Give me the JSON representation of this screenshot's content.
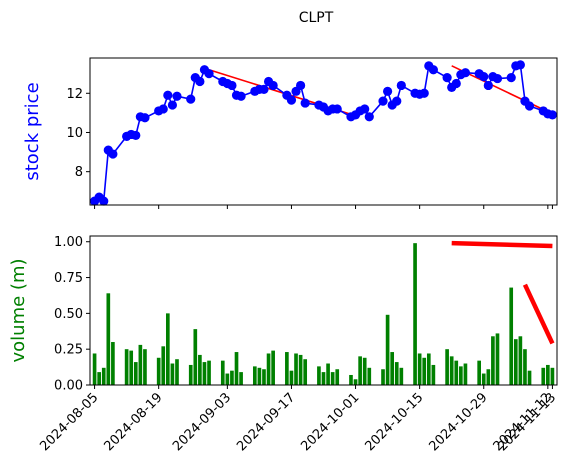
{
  "title": "CLPT",
  "colors": {
    "price": "#0000ff",
    "volume": "#008000",
    "trend": "#ff0000"
  },
  "chart_data": [
    {
      "type": "line",
      "ylabel": "stock price",
      "ylim": [
        6.3,
        13.8
      ],
      "yticks": [
        8,
        10,
        12
      ],
      "xlim": [
        "2024-08-04",
        "2024-11-14"
      ],
      "x_tick_dates": [
        "2024-08-05",
        "2024-08-19",
        "2024-09-03",
        "2024-09-17",
        "2024-10-01",
        "2024-10-15",
        "2024-10-29",
        "2024-11-12",
        "2024-11-13"
      ],
      "series": [
        {
          "marker": "circle",
          "x": [
            "2024-08-05",
            "2024-08-06",
            "2024-08-07",
            "2024-08-08",
            "2024-08-09",
            "2024-08-12",
            "2024-08-13",
            "2024-08-14",
            "2024-08-15",
            "2024-08-16",
            "2024-08-19",
            "2024-08-20",
            "2024-08-21",
            "2024-08-22",
            "2024-08-23",
            "2024-08-26",
            "2024-08-27",
            "2024-08-28",
            "2024-08-29",
            "2024-08-30",
            "2024-09-02",
            "2024-09-03",
            "2024-09-04",
            "2024-09-05",
            "2024-09-06",
            "2024-09-09",
            "2024-09-10",
            "2024-09-11",
            "2024-09-12",
            "2024-09-13",
            "2024-09-16",
            "2024-09-17",
            "2024-09-18",
            "2024-09-19",
            "2024-09-20",
            "2024-09-23",
            "2024-09-24",
            "2024-09-25",
            "2024-09-26",
            "2024-09-27",
            "2024-09-30",
            "2024-10-01",
            "2024-10-02",
            "2024-10-03",
            "2024-10-04",
            "2024-10-07",
            "2024-10-08",
            "2024-10-09",
            "2024-10-10",
            "2024-10-11",
            "2024-10-14",
            "2024-10-15",
            "2024-10-16",
            "2024-10-17",
            "2024-10-18",
            "2024-10-21",
            "2024-10-22",
            "2024-10-23",
            "2024-10-24",
            "2024-10-25",
            "2024-10-28",
            "2024-10-29",
            "2024-10-30",
            "2024-10-31",
            "2024-11-01",
            "2024-11-04",
            "2024-11-05",
            "2024-11-06",
            "2024-11-07",
            "2024-11-08",
            "2024-11-11",
            "2024-11-12",
            "2024-11-13"
          ],
          "values": [
            6.5,
            6.7,
            6.5,
            9.1,
            8.9,
            9.8,
            9.9,
            9.85,
            10.8,
            10.75,
            11.1,
            11.2,
            11.9,
            11.4,
            11.85,
            11.7,
            12.8,
            12.6,
            13.2,
            13.0,
            12.6,
            12.5,
            12.4,
            11.9,
            11.85,
            12.1,
            12.2,
            12.2,
            12.6,
            12.4,
            11.9,
            11.65,
            12.1,
            12.4,
            11.5,
            11.4,
            11.3,
            11.1,
            11.2,
            11.2,
            10.8,
            10.9,
            11.1,
            11.2,
            10.8,
            11.6,
            12.1,
            11.4,
            11.6,
            12.4,
            12.0,
            11.95,
            12.0,
            13.4,
            13.2,
            12.8,
            12.3,
            12.5,
            12.95,
            13.05,
            13.0,
            12.85,
            12.4,
            12.85,
            12.75,
            12.8,
            13.4,
            13.45,
            11.6,
            11.35,
            11.1,
            10.95,
            10.9
          ]
        }
      ],
      "trendlines": [
        {
          "x": [
            "2024-08-30",
            "2024-10-01"
          ],
          "y": [
            13.2,
            10.85
          ]
        },
        {
          "x": [
            "2024-10-22",
            "2024-11-13"
          ],
          "y": [
            13.4,
            10.95
          ]
        }
      ]
    },
    {
      "type": "bar",
      "ylabel": "volume (m)",
      "ylim": [
        0,
        1.04
      ],
      "yticks": [
        0.0,
        0.25,
        0.5,
        0.75,
        1.0
      ],
      "ytick_labels": [
        "0.00",
        "0.25",
        "0.50",
        "0.75",
        "1.00"
      ],
      "series": [
        {
          "x": [
            "2024-08-05",
            "2024-08-06",
            "2024-08-07",
            "2024-08-08",
            "2024-08-09",
            "2024-08-12",
            "2024-08-13",
            "2024-08-14",
            "2024-08-15",
            "2024-08-16",
            "2024-08-19",
            "2024-08-20",
            "2024-08-21",
            "2024-08-22",
            "2024-08-23",
            "2024-08-26",
            "2024-08-27",
            "2024-08-28",
            "2024-08-29",
            "2024-08-30",
            "2024-09-02",
            "2024-09-03",
            "2024-09-04",
            "2024-09-05",
            "2024-09-06",
            "2024-09-09",
            "2024-09-10",
            "2024-09-11",
            "2024-09-12",
            "2024-09-13",
            "2024-09-16",
            "2024-09-17",
            "2024-09-18",
            "2024-09-19",
            "2024-09-20",
            "2024-09-23",
            "2024-09-24",
            "2024-09-25",
            "2024-09-26",
            "2024-09-27",
            "2024-09-30",
            "2024-10-01",
            "2024-10-02",
            "2024-10-03",
            "2024-10-04",
            "2024-10-07",
            "2024-10-08",
            "2024-10-09",
            "2024-10-10",
            "2024-10-11",
            "2024-10-14",
            "2024-10-15",
            "2024-10-16",
            "2024-10-17",
            "2024-10-18",
            "2024-10-21",
            "2024-10-22",
            "2024-10-23",
            "2024-10-24",
            "2024-10-25",
            "2024-10-28",
            "2024-10-29",
            "2024-10-30",
            "2024-10-31",
            "2024-11-01",
            "2024-11-04",
            "2024-11-05",
            "2024-11-06",
            "2024-11-07",
            "2024-11-08",
            "2024-11-11",
            "2024-11-12",
            "2024-11-13"
          ],
          "values": [
            0.22,
            0.09,
            0.12,
            0.64,
            0.3,
            0.25,
            0.24,
            0.16,
            0.28,
            0.25,
            0.19,
            0.27,
            0.5,
            0.15,
            0.18,
            0.14,
            0.39,
            0.21,
            0.16,
            0.17,
            0.17,
            0.08,
            0.1,
            0.23,
            0.09,
            0.13,
            0.12,
            0.11,
            0.22,
            0.24,
            0.23,
            0.1,
            0.22,
            0.21,
            0.18,
            0.13,
            0.09,
            0.15,
            0.09,
            0.11,
            0.07,
            0.04,
            0.2,
            0.19,
            0.12,
            0.11,
            0.49,
            0.23,
            0.16,
            0.12,
            0.99,
            0.22,
            0.19,
            0.22,
            0.14,
            0.25,
            0.2,
            0.17,
            0.13,
            0.15,
            0.17,
            0.08,
            0.11,
            0.34,
            0.36,
            0.68,
            0.32,
            0.34,
            0.25,
            0.1,
            0.12,
            0.14,
            0.12
          ]
        }
      ],
      "trendlines": [
        {
          "x": [
            "2024-10-22",
            "2024-11-13"
          ],
          "y": [
            0.99,
            0.97
          ]
        },
        {
          "x": [
            "2024-11-07",
            "2024-11-13"
          ],
          "y": [
            0.7,
            0.29
          ]
        }
      ]
    }
  ]
}
